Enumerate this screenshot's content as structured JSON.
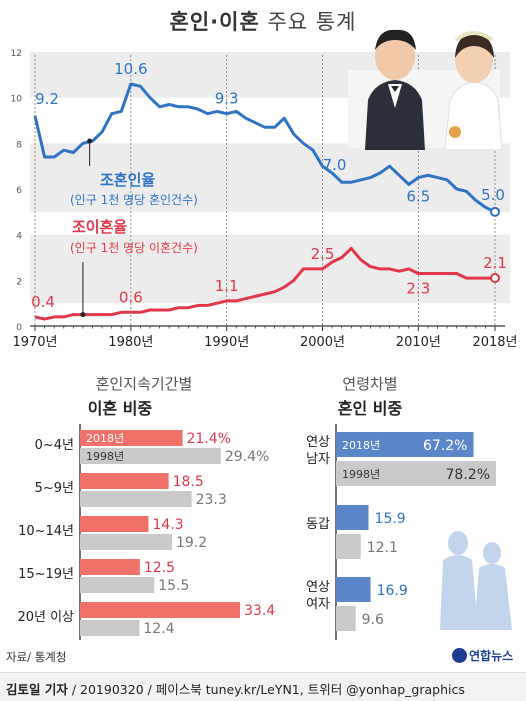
{
  "title_main": "혼인·이혼",
  "title_sub": "주요 통계",
  "chart_data": [
    {
      "type": "line",
      "ylim": [
        0,
        12
      ],
      "yticks": [
        "0",
        "2",
        "4",
        "6",
        "8",
        "10",
        "12"
      ],
      "x_tick_labels": [
        "1970년",
        "1980년",
        "1990년",
        "2000년",
        "2010년",
        "2018년"
      ],
      "x_ticks": [
        1970,
        1980,
        1990,
        2000,
        2010,
        2018
      ],
      "grid": "horizontal bands",
      "series": [
        {
          "name": "조혼인율",
          "subtitle": "(인구 1천 명당 혼인건수)",
          "color": "#2f73c4",
          "x": [
            1970,
            1971,
            1972,
            1973,
            1974,
            1975,
            1976,
            1977,
            1978,
            1979,
            1980,
            1981,
            1982,
            1983,
            1984,
            1985,
            1986,
            1987,
            1988,
            1989,
            1990,
            1991,
            1992,
            1993,
            1994,
            1995,
            1996,
            1997,
            1998,
            1999,
            2000,
            2001,
            2002,
            2003,
            2004,
            2005,
            2006,
            2007,
            2008,
            2009,
            2010,
            2011,
            2012,
            2013,
            2014,
            2015,
            2016,
            2017,
            2018
          ],
          "values": [
            9.2,
            7.4,
            7.4,
            7.7,
            7.6,
            8.0,
            8.1,
            8.5,
            9.3,
            9.4,
            10.6,
            10.5,
            10.0,
            9.6,
            9.7,
            9.6,
            9.6,
            9.5,
            9.3,
            9.4,
            9.3,
            9.4,
            9.1,
            8.9,
            8.7,
            8.7,
            9.1,
            8.4,
            8.0,
            7.7,
            7.0,
            6.7,
            6.3,
            6.3,
            6.4,
            6.5,
            6.7,
            7.0,
            6.6,
            6.2,
            6.5,
            6.6,
            6.5,
            6.4,
            6.0,
            5.9,
            5.5,
            5.2,
            5.0
          ],
          "labels": [
            {
              "x": 1970,
              "text": "9.2"
            },
            {
              "x": 1980,
              "text": "10.6"
            },
            {
              "x": 1990,
              "text": "9.3"
            },
            {
              "x": 2000,
              "text": "7.0"
            },
            {
              "x": 2010,
              "text": "6.5"
            },
            {
              "x": 2018,
              "text": "5.0"
            }
          ]
        },
        {
          "name": "조이혼율",
          "subtitle": "(인구 1천 명당 이혼건수)",
          "color": "#e0384a",
          "x": [
            1970,
            1971,
            1972,
            1973,
            1974,
            1975,
            1976,
            1977,
            1978,
            1979,
            1980,
            1981,
            1982,
            1983,
            1984,
            1985,
            1986,
            1987,
            1988,
            1989,
            1990,
            1991,
            1992,
            1993,
            1994,
            1995,
            1996,
            1997,
            1998,
            1999,
            2000,
            2001,
            2002,
            2003,
            2004,
            2005,
            2006,
            2007,
            2008,
            2009,
            2010,
            2011,
            2012,
            2013,
            2014,
            2015,
            2016,
            2017,
            2018
          ],
          "values": [
            0.4,
            0.3,
            0.4,
            0.4,
            0.5,
            0.5,
            0.5,
            0.5,
            0.5,
            0.6,
            0.6,
            0.6,
            0.7,
            0.7,
            0.7,
            0.8,
            0.8,
            0.9,
            0.9,
            1.0,
            1.1,
            1.1,
            1.2,
            1.3,
            1.4,
            1.5,
            1.7,
            2.0,
            2.5,
            2.5,
            2.5,
            2.8,
            3.0,
            3.4,
            2.9,
            2.6,
            2.5,
            2.5,
            2.4,
            2.5,
            2.3,
            2.3,
            2.3,
            2.3,
            2.3,
            2.1,
            2.1,
            2.1,
            2.1
          ],
          "labels": [
            {
              "x": 1970,
              "text": "0.4"
            },
            {
              "x": 1980,
              "text": "0.6"
            },
            {
              "x": 1990,
              "text": "1.1"
            },
            {
              "x": 2000,
              "text": "2.5"
            },
            {
              "x": 2010,
              "text": "2.3"
            },
            {
              "x": 2018,
              "text": "2.1"
            }
          ]
        }
      ]
    },
    {
      "type": "bar",
      "orientation": "horizontal",
      "title": "혼인지속기간별",
      "subtitle": "이혼 비중",
      "categories": [
        "0~4년",
        "5~9년",
        "10~14년",
        "15~19년",
        "20년 이상"
      ],
      "series": [
        {
          "name": "2018년",
          "color": "#f0716a",
          "values": [
            21.4,
            18.5,
            14.3,
            12.5,
            33.4
          ],
          "labels": [
            "21.4%",
            "18.5",
            "14.3",
            "12.5",
            "33.4"
          ]
        },
        {
          "name": "1998년",
          "color": "#c9c9c9",
          "values": [
            29.4,
            23.3,
            19.2,
            15.5,
            12.4
          ],
          "labels": [
            "29.4%",
            "23.3",
            "19.2",
            "15.5",
            "12.4"
          ]
        }
      ]
    },
    {
      "type": "bar",
      "orientation": "horizontal",
      "title": "연령차별",
      "subtitle": "혼인 비중",
      "categories": [
        "연상 남자",
        "동갑",
        "연상 여자"
      ],
      "series": [
        {
          "name": "2018년",
          "color": "#5b87c9",
          "values": [
            67.2,
            15.9,
            16.9
          ],
          "labels": [
            "67.2%",
            "15.9",
            "16.9"
          ]
        },
        {
          "name": "1998년",
          "color": "#c9c9c9",
          "values": [
            78.2,
            12.1,
            9.6
          ],
          "labels": [
            "78.2%",
            "12.1",
            "9.6"
          ]
        }
      ]
    }
  ],
  "source": "자료/ 통계청",
  "credit_author": "김토일 기자",
  "credit_rest": " / 20190320 / 페이스북 tuney.kr/LeYN1, 트위터 @yonhap_graphics",
  "logo": "연합뉴스"
}
